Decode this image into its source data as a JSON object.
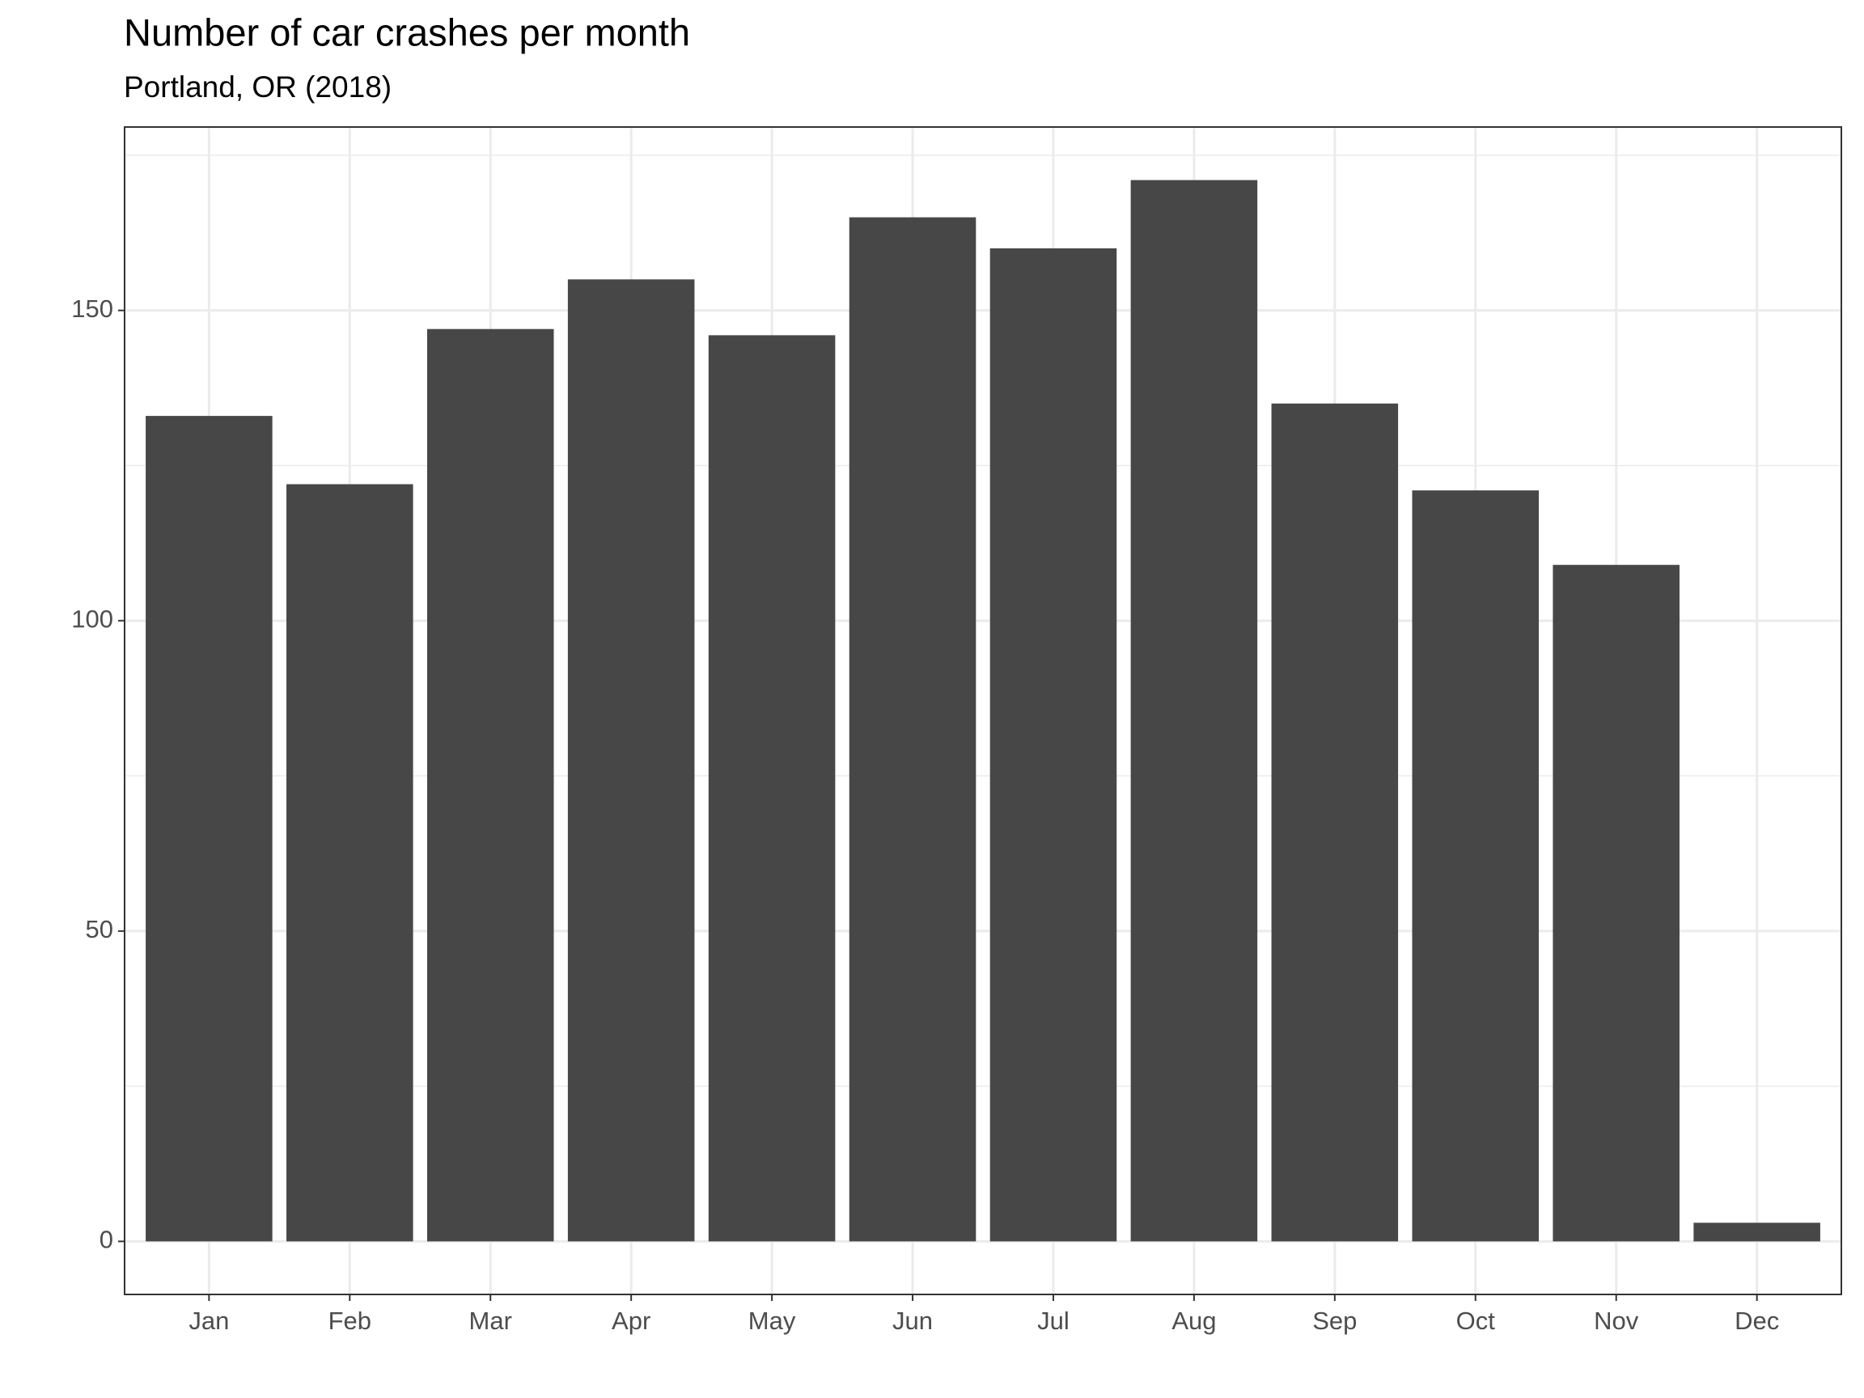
{
  "chart_data": {
    "type": "bar",
    "title": "Number of car crashes per month",
    "subtitle": "Portland, OR (2018)",
    "categories": [
      "Jan",
      "Feb",
      "Mar",
      "Apr",
      "May",
      "Jun",
      "Jul",
      "Aug",
      "Sep",
      "Oct",
      "Nov",
      "Dec"
    ],
    "values": [
      133,
      122,
      147,
      155,
      146,
      165,
      160,
      171,
      135,
      121,
      109,
      3
    ],
    "color": "#474747",
    "ylim": [
      -8.55,
      179.55
    ],
    "yticks": [
      0,
      50,
      100,
      150
    ],
    "grid": true
  }
}
